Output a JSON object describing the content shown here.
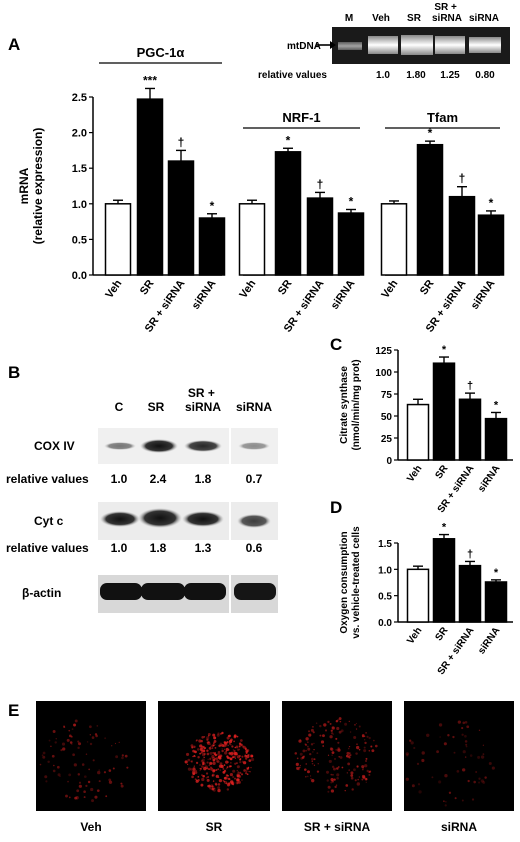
{
  "panel_letters": {
    "A": "A",
    "B": "B",
    "C": "C",
    "D": "D",
    "E": "E"
  },
  "sig": {
    "one": "*",
    "three": "***",
    "dagger": "†"
  },
  "colors": {
    "control": "#ffffff",
    "treated": "#000000",
    "stroke": "#000000"
  },
  "gel": {
    "lane_labels": [
      "M",
      "Veh",
      "SR",
      "SR +\nsiRNA",
      "siRNA"
    ],
    "band_label": "mtDNA",
    "relative_label": "relative values",
    "relative_values": [
      "1.0",
      "1.80",
      "1.25",
      "0.80"
    ]
  },
  "western": {
    "lane_labels": [
      "C",
      "SR",
      "SR +\nsiRNA",
      "siRNA"
    ],
    "rows": [
      {
        "label": "COX IV",
        "relative_label": "relative values",
        "values": [
          "1.0",
          "2.4",
          "1.8",
          "0.7"
        ]
      },
      {
        "label": "Cyt c",
        "relative_label": "relative values",
        "values": [
          "1.0",
          "1.8",
          "1.3",
          "0.6"
        ]
      },
      {
        "label": "β-actin"
      }
    ]
  },
  "micrographs": {
    "labels": [
      "Veh",
      "SR",
      "SR + siRNA",
      "siRNA"
    ]
  },
  "chart_data": [
    {
      "id": "A",
      "type": "bar",
      "ylabel": "mRNA\n(relative expression)",
      "ylim": [
        0,
        2.5
      ],
      "yticks": [
        "0.0",
        "0.5",
        "1.0",
        "1.5",
        "2.0",
        "2.5"
      ],
      "groups": [
        {
          "title": "PGC-1α",
          "categories": [
            "Veh",
            "SR",
            "SR + siRNA",
            "siRNA"
          ],
          "values": [
            1.0,
            2.47,
            1.6,
            0.8
          ],
          "errors": [
            0.05,
            0.15,
            0.15,
            0.06
          ],
          "marks": [
            "",
            "***",
            "†",
            "*"
          ]
        },
        {
          "title": "NRF-1",
          "categories": [
            "Veh",
            "SR",
            "SR + siRNA",
            "siRNA"
          ],
          "values": [
            1.0,
            1.73,
            1.08,
            0.87
          ],
          "errors": [
            0.05,
            0.05,
            0.08,
            0.05
          ],
          "marks": [
            "",
            "*",
            "†",
            "*"
          ]
        },
        {
          "title": "Tfam",
          "categories": [
            "Veh",
            "SR",
            "SR + siRNA",
            "siRNA"
          ],
          "values": [
            1.0,
            1.83,
            1.1,
            0.84
          ],
          "errors": [
            0.04,
            0.05,
            0.14,
            0.06
          ],
          "marks": [
            "",
            "*",
            "†",
            "*"
          ]
        }
      ]
    },
    {
      "id": "C",
      "type": "bar",
      "ylabel": "Citrate synthase\n(nmol/min/mg prot)",
      "ylim": [
        0,
        125
      ],
      "yticks": [
        "0",
        "25",
        "50",
        "75",
        "100",
        "125"
      ],
      "categories": [
        "Veh",
        "SR",
        "SR + siRNA",
        "siRNA"
      ],
      "values": [
        63,
        110,
        69,
        47
      ],
      "errors": [
        6,
        7,
        7,
        7
      ],
      "marks": [
        "",
        "*",
        "†",
        "*"
      ]
    },
    {
      "id": "D",
      "type": "bar",
      "ylabel": "Oxygen consumption\nvs. vehicle-treated cells",
      "ylim": [
        0,
        1.5
      ],
      "yticks": [
        "0.0",
        "0.5",
        "1.0",
        "1.5"
      ],
      "categories": [
        "Veh",
        "SR",
        "SR + siRNA",
        "siRNA"
      ],
      "values": [
        1.0,
        1.58,
        1.07,
        0.76
      ],
      "errors": [
        0.06,
        0.08,
        0.08,
        0.04
      ],
      "marks": [
        "",
        "*",
        "†",
        "*"
      ]
    }
  ]
}
